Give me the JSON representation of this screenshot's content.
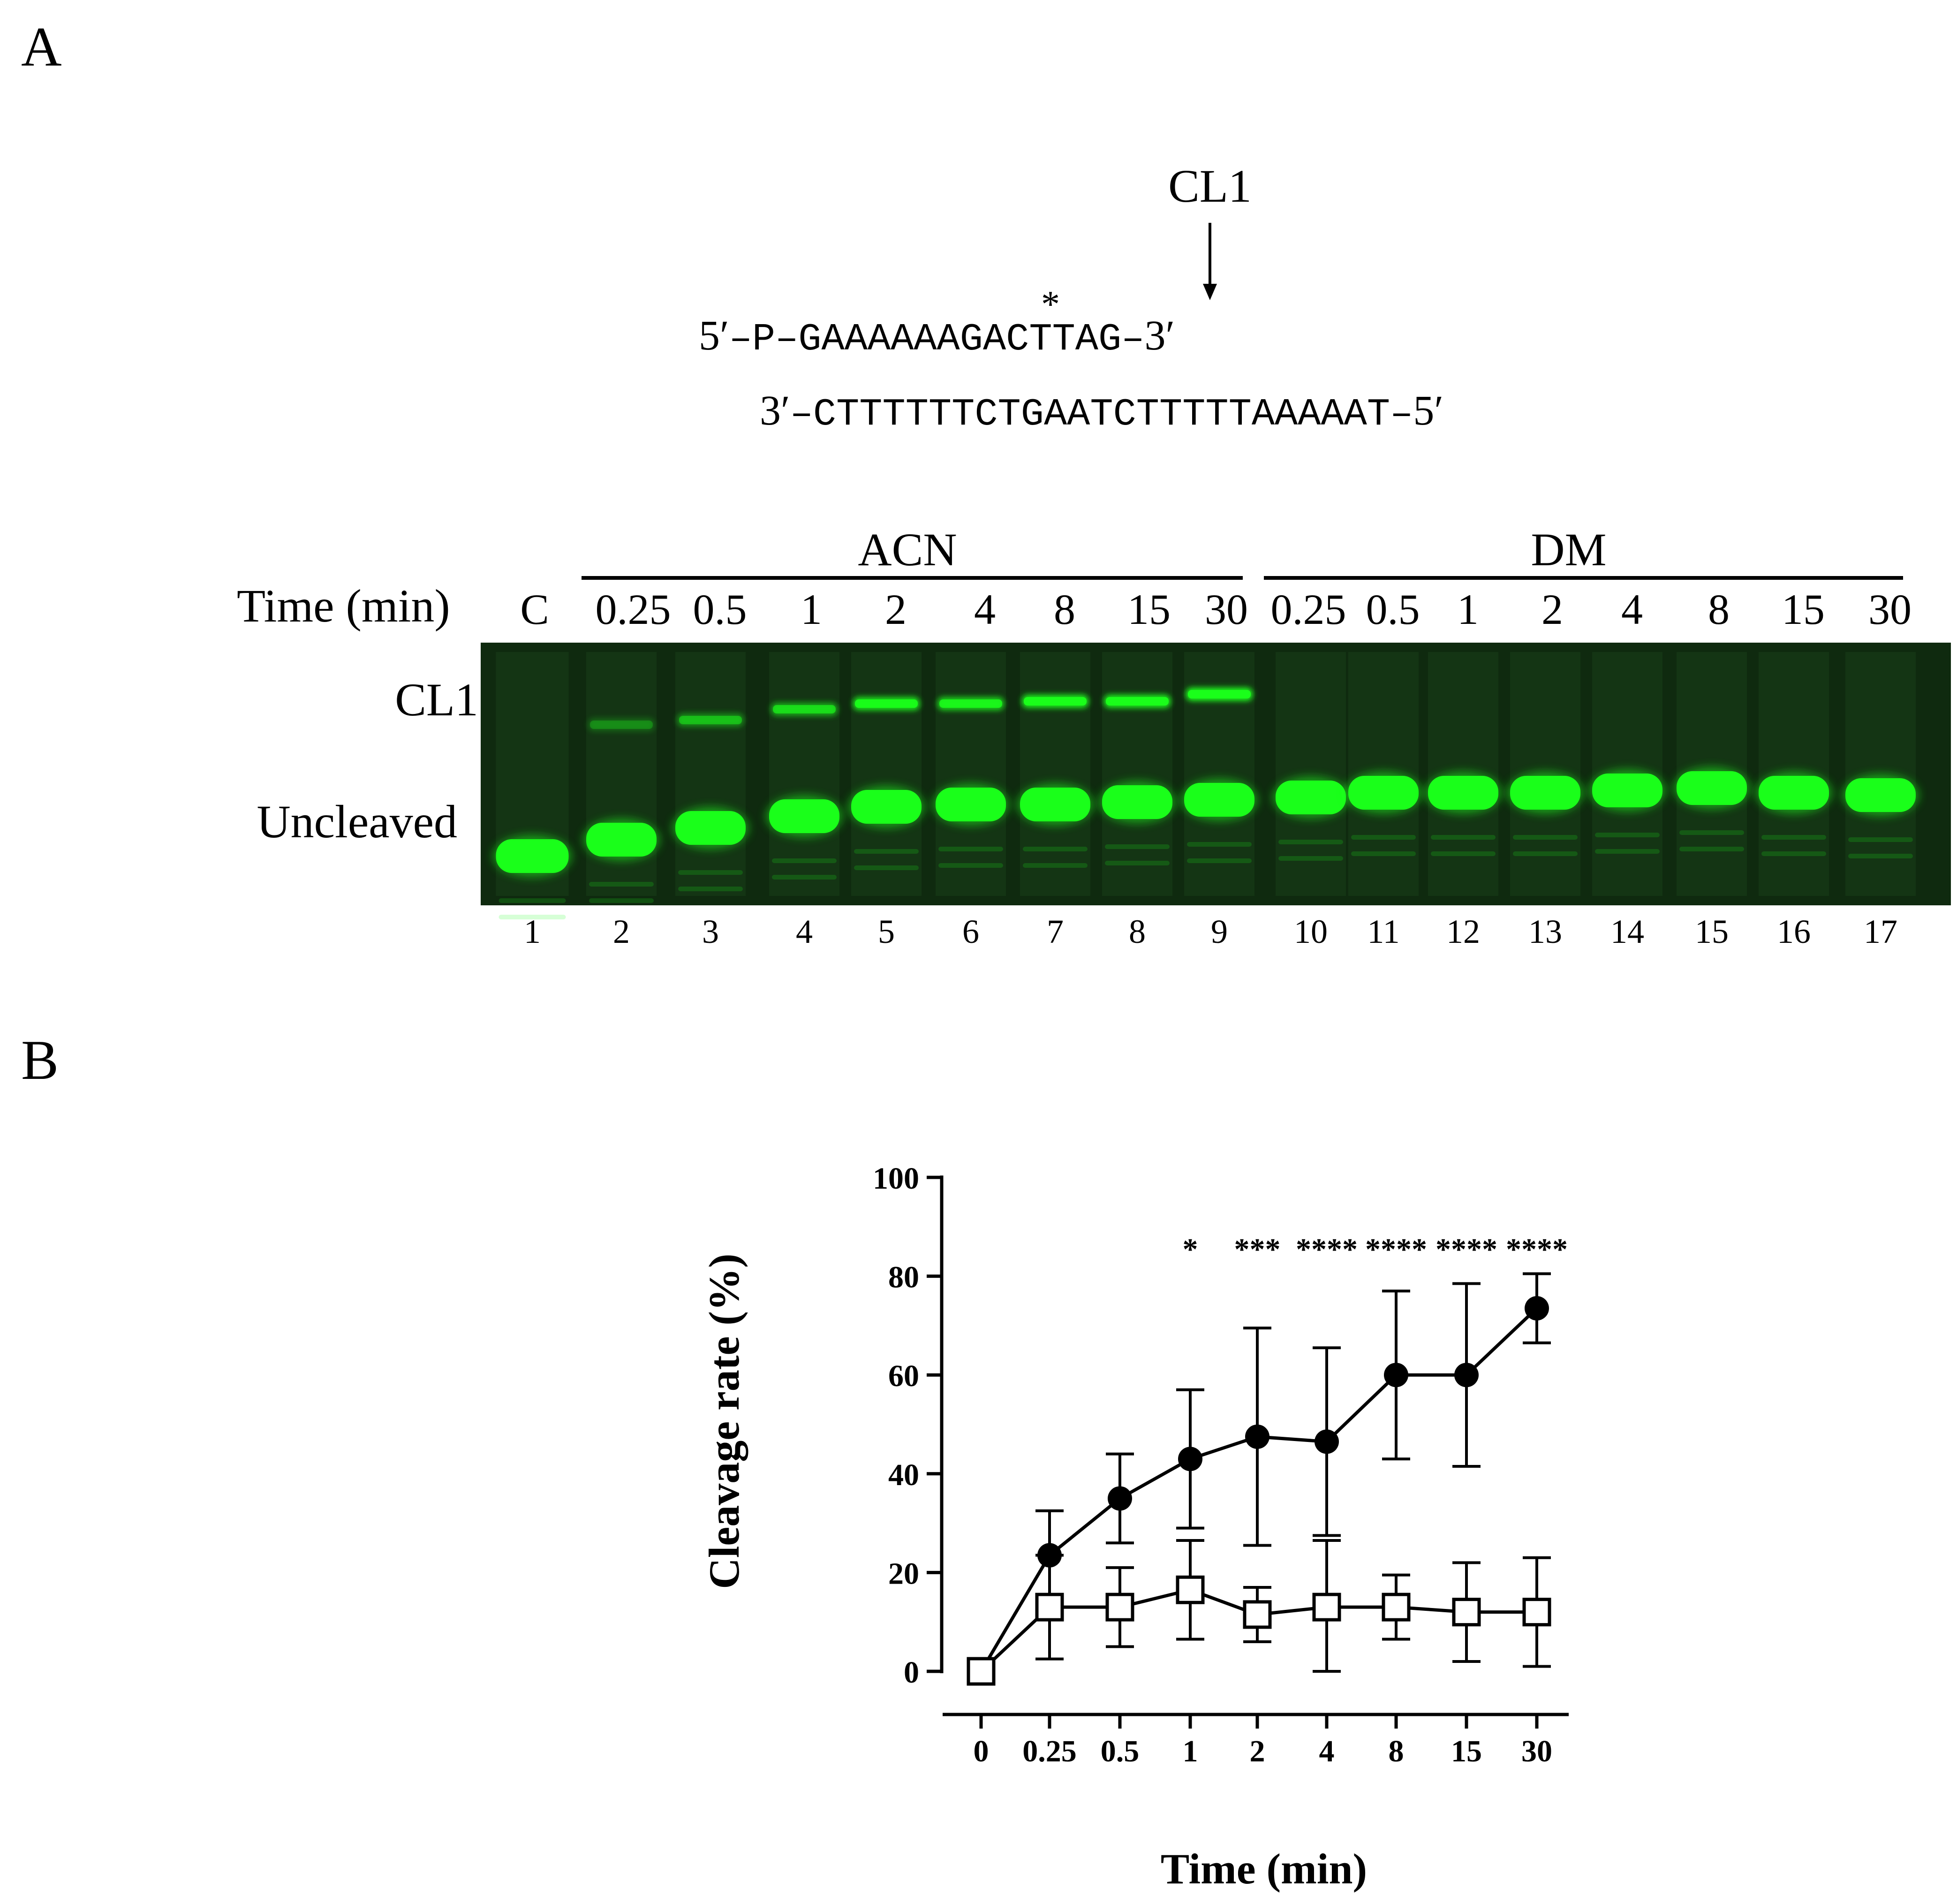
{
  "panel_a": {
    "letter": "A",
    "cleavage_site_label": "CL1",
    "strand_top": {
      "prefix": "5′",
      "body": "–P–GAAAAAAGACTTAG–",
      "suffix": "3′",
      "star": "*"
    },
    "strand_bottom": {
      "prefix": "3′",
      "body": "–CTTTTTTCTGAATCTTTTTAAAAAT–",
      "suffix": "5′"
    },
    "gel": {
      "time_label": "Time (min)",
      "group_acn": "ACN",
      "group_dm": "DM",
      "times": [
        "C",
        "0.25",
        "0.5",
        "1",
        "2",
        "4",
        "8",
        "15",
        "30",
        "0.25",
        "0.5",
        "1",
        "2",
        "4",
        "8",
        "15",
        "30"
      ],
      "lanes": [
        "1",
        "2",
        "3",
        "4",
        "5",
        "6",
        "7",
        "8",
        "9",
        "10",
        "11",
        "12",
        "13",
        "14",
        "15",
        "16",
        "17"
      ],
      "band_cl1_label": "CL1",
      "band_uncleaved_label": "Uncleaved",
      "background_color": "#0f2a0f",
      "band_color": "#1aff1a"
    }
  },
  "panel_b": {
    "letter": "B"
  },
  "chart_data": {
    "type": "line",
    "xlabel": "Time (min)",
    "ylabel": "Cleavage rate (%)",
    "categories": [
      "0",
      "0.25",
      "0.5",
      "1",
      "2",
      "4",
      "8",
      "15",
      "30"
    ],
    "ylim": [
      0,
      100
    ],
    "yticks": [
      "0",
      "20",
      "40",
      "60",
      "80",
      "100"
    ],
    "grid": false,
    "series": [
      {
        "marker": "filled-circle",
        "values": [
          0,
          23.5,
          35,
          43,
          47.5,
          46.5,
          60,
          60,
          73.5
        ],
        "err_upper": [
          0,
          9,
          9,
          14,
          22,
          19,
          17,
          18.5,
          7
        ],
        "err_lower": [
          0,
          9,
          9,
          14,
          22,
          19,
          17,
          18.5,
          7
        ]
      },
      {
        "marker": "open-square",
        "values": [
          0,
          13,
          13,
          16.5,
          11.5,
          13,
          13,
          12,
          12
        ],
        "err_upper": [
          0,
          10.5,
          8,
          10,
          5.5,
          13.5,
          6.5,
          10,
          11
        ],
        "err_lower": [
          0,
          10.5,
          8,
          10,
          5.5,
          13,
          6.5,
          10,
          11
        ]
      }
    ],
    "significance": [
      "",
      "",
      "",
      "*",
      "***",
      "****",
      "****",
      "****",
      "****"
    ]
  }
}
